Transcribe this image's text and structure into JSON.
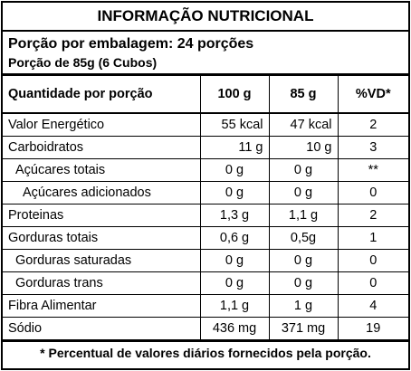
{
  "title": "INFORMAÇÃO NUTRICIONAL",
  "serving": {
    "per_package": "Porção por embalagem: 24 porções",
    "portion": "Porção de 85g (6 Cubos)"
  },
  "headers": {
    "quantity": "Quantidade por porção",
    "col_100g": "100 g",
    "col_85g": "85 g",
    "col_vd": "%VD*"
  },
  "rows": [
    {
      "name": "Valor Energético",
      "v100": "55 kcal",
      "v85": "47 kcal",
      "vd": "2"
    },
    {
      "name": "Carboidratos",
      "v100": "11 g",
      "v85": "10 g",
      "vd": "3"
    },
    {
      "name": "Açúcares totais",
      "v100": "0 g",
      "v85": "0 g",
      "vd": "**"
    },
    {
      "name": "Açúcares adicionados",
      "v100": "0 g",
      "v85": "0 g",
      "vd": "0"
    },
    {
      "name": "Proteinas",
      "v100": "1,3 g",
      "v85": "1,1 g",
      "vd": "2"
    },
    {
      "name": "Gorduras totais",
      "v100": "0,6 g",
      "v85": "0,5g",
      "vd": "1"
    },
    {
      "name": "Gorduras saturadas",
      "v100": "0 g",
      "v85": "0 g",
      "vd": "0"
    },
    {
      "name": "Gorduras trans",
      "v100": "0 g",
      "v85": "0 g",
      "vd": "0"
    },
    {
      "name": "Fibra Alimentar",
      "v100": "1,1 g",
      "v85": "1 g",
      "vd": "4"
    },
    {
      "name": "Sódio",
      "v100": "436 mg",
      "v85": "371 mg",
      "vd": "19"
    }
  ],
  "footnote": "* Percentual de valores diários fornecidos pela porção."
}
